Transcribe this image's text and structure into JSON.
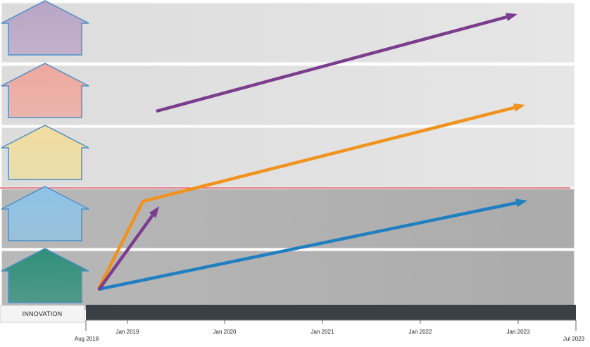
{
  "diagram": {
    "bands": [
      {
        "id": "band-1",
        "house_color": "#b9a4c6",
        "band_shade": "light"
      },
      {
        "id": "band-2",
        "house_color": "#eea79d",
        "band_shade": "light"
      },
      {
        "id": "band-3",
        "house_color": "#f0dd9e",
        "band_shade": "light"
      },
      {
        "id": "band-4",
        "house_color": "#8fc3e6",
        "band_shade": "dark"
      },
      {
        "id": "band-5",
        "house_color": "#2f8f7a",
        "band_shade": "dark"
      }
    ],
    "divider_color": "#e15a6a",
    "arrows": [
      {
        "id": "purple-top",
        "color": "#7b3d8e"
      },
      {
        "id": "orange",
        "color": "#f0921e"
      },
      {
        "id": "purple-short",
        "color": "#7b3d8e"
      },
      {
        "id": "blue",
        "color": "#1f7fc0"
      }
    ]
  },
  "timeline": {
    "scale_label": "INNOVATION",
    "start_label": "Aug 2018",
    "end_label": "Jul 2023",
    "ticks": [
      "Jan 2019",
      "Jan 2020",
      "Jan 2021",
      "Jan 2022",
      "Jan 2023"
    ],
    "bar_color": "#3b4047"
  }
}
